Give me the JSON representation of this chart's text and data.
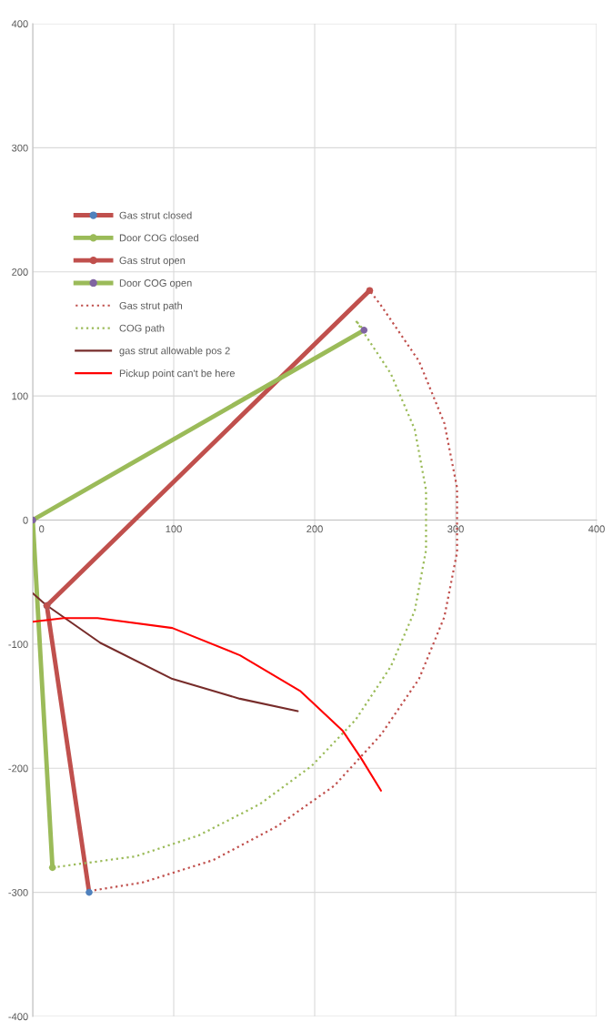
{
  "chart_data": {
    "type": "line",
    "xlim": [
      0,
      400
    ],
    "ylim": [
      -400,
      400
    ],
    "xticks": [
      0,
      100,
      200,
      300,
      400
    ],
    "yticks": [
      -400,
      -300,
      -200,
      -100,
      0,
      100,
      200,
      300,
      400
    ],
    "grid": true,
    "legend": "top left",
    "series": [
      {
        "name": "Gas strut closed",
        "color": "#c0504d",
        "marker": "circle",
        "line_style": "solid",
        "colors": [
          "#4f81bd",
          "#4f81bd"
        ],
        "x": [
          10,
          40
        ],
        "values": [
          -69,
          -300
        ]
      },
      {
        "name": "Door COG closed",
        "color": "#9bbb59",
        "marker": "circle",
        "line_style": "solid",
        "colors": [
          "#9bbb59",
          "#9bbb59"
        ],
        "x": [
          0,
          14
        ],
        "values": [
          0,
          -280
        ]
      },
      {
        "name": "Gas strut open",
        "color": "#c0504d",
        "marker": "circle",
        "line_style": "solid",
        "colors": [
          "#c0504d",
          "#c0504d"
        ],
        "x": [
          10,
          239
        ],
        "values": [
          -69,
          185
        ]
      },
      {
        "name": "Door COG open",
        "color": "#9bbb59",
        "marker": "circle",
        "line_style": "solid",
        "colors": [
          "#8064a2",
          "#8064a2"
        ],
        "x": [
          0,
          235
        ],
        "values": [
          0,
          153
        ]
      },
      {
        "name": "Gas strut path",
        "color": "#c0504d",
        "marker": "none",
        "line_style": "dotted",
        "x": [
          40,
          78,
          128,
          173,
          214,
          247,
          274,
          292,
          301,
          301,
          292,
          274,
          247,
          239
        ],
        "values": [
          -299,
          -292,
          -274,
          -247,
          -214,
          -173,
          -128,
          -78,
          -26,
          26,
          78,
          128,
          173,
          185
        ]
      },
      {
        "name": "COG path",
        "color": "#9bbb59",
        "marker": "none",
        "line_style": "dotted",
        "x": [
          14,
          73,
          118,
          161,
          198,
          229,
          254,
          271,
          279,
          279,
          271,
          254,
          229,
          235
        ],
        "values": [
          -280,
          -271,
          -254,
          -229,
          -198,
          -161,
          -118,
          -73,
          -24,
          24,
          73,
          118,
          161,
          153
        ]
      },
      {
        "name": "gas strut allowable pos 2",
        "color": "#772c2a",
        "marker": "none",
        "line_style": "solid",
        "x": [
          0,
          9,
          48,
          99,
          147,
          188
        ],
        "values": [
          -59,
          -68,
          -99,
          -128,
          -144,
          -154
        ]
      },
      {
        "name": "Pickup point can't be here",
        "color": "#ff0000",
        "marker": "none",
        "line_style": "solid",
        "x": [
          0,
          22,
          46,
          99,
          147,
          190,
          220,
          233,
          247
        ],
        "values": [
          -82,
          -79,
          -79,
          -87,
          -109,
          -138,
          -170,
          -192,
          -218
        ]
      }
    ]
  }
}
